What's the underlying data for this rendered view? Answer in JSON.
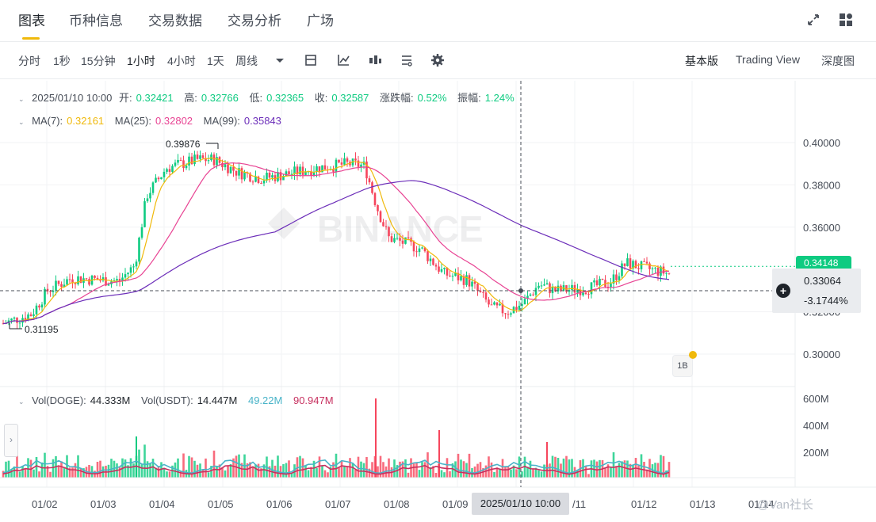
{
  "nav": {
    "tabs": [
      "图表",
      "币种信息",
      "交易数据",
      "交易分析",
      "广场"
    ]
  },
  "toolbar": {
    "intervals": [
      "分时",
      "1秒",
      "15分钟",
      "1小时",
      "4小时",
      "1天",
      "周线"
    ],
    "active_interval": "1小时",
    "views": [
      "基本版",
      "Trading View",
      "深度图"
    ],
    "active_view": "基本版"
  },
  "ohlc": {
    "date": "2025/01/10 10:00",
    "open_label": "开:",
    "open": "0.32421",
    "high_label": "高:",
    "high": "0.32766",
    "low_label": "低:",
    "low": "0.32365",
    "close_label": "收:",
    "close": "0.32587",
    "change_label": "涨跌幅:",
    "change": "0.52%",
    "amp_label": "振幅:",
    "amp": "1.24%"
  },
  "ma": {
    "ma7_label": "MA(7):",
    "ma7": "0.32161",
    "ma25_label": "MA(25):",
    "ma25": "0.32802",
    "ma99_label": "MA(99):",
    "ma99": "0.35843"
  },
  "colors": {
    "up": "#0ecb81",
    "down": "#f6465d",
    "ma7": "#f0b90b",
    "ma25": "#e84393",
    "ma99": "#6c2eb9",
    "accent": "#f0b90b"
  },
  "price_axis": [
    "0.40000",
    "0.38000",
    "0.36000",
    "0.34148",
    "0.32000",
    "0.30000"
  ],
  "current_price": "0.34148",
  "crosshair": {
    "price": "0.33064",
    "pct": "-3.1744%",
    "time": "2025/01/10 10:00"
  },
  "annotations": {
    "high": "0.39876",
    "low": "0.31195"
  },
  "volume": {
    "doge_label": "Vol(DOGE):",
    "doge": "44.333M",
    "usdt_label": "Vol(USDT):",
    "usdt": "14.447M",
    "ma1": "49.22M",
    "ma2": "90.947M",
    "axis": [
      "600M",
      "400M",
      "200M"
    ]
  },
  "dates": [
    "01/02",
    "01/03",
    "01/04",
    "01/05",
    "01/06",
    "01/07",
    "01/08",
    "01/09",
    "/11",
    "01/12",
    "01/13",
    "01/14"
  ],
  "watermark": "@Van社长",
  "badge": "1B"
}
